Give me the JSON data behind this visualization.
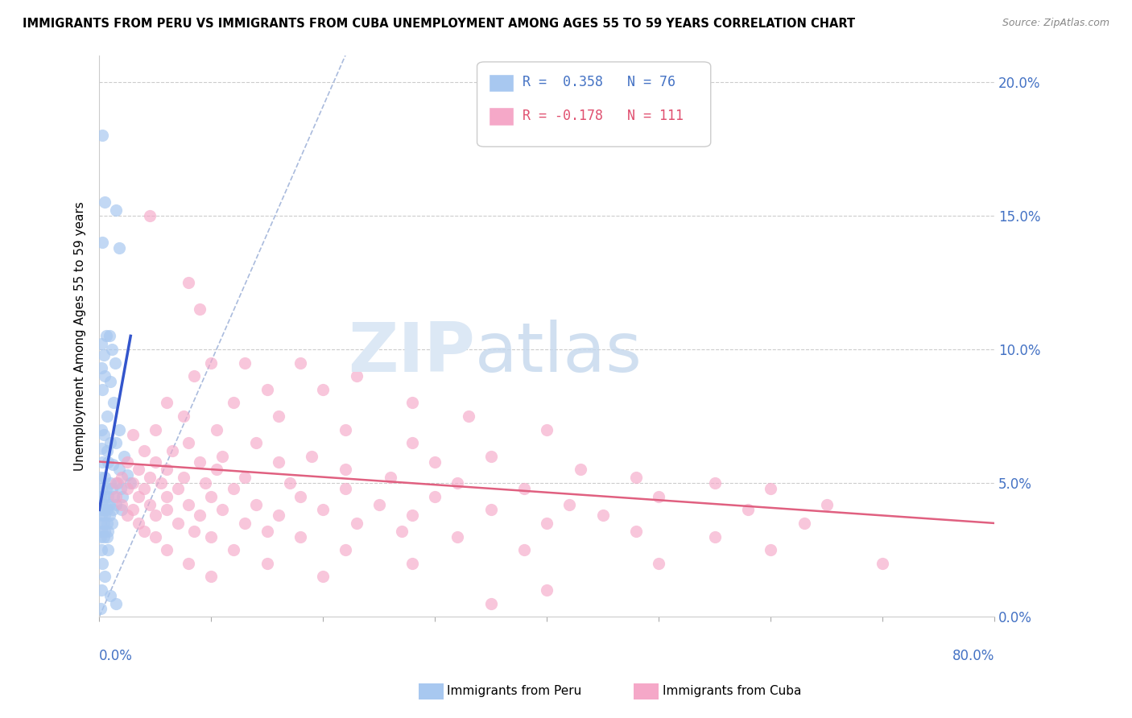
{
  "title": "IMMIGRANTS FROM PERU VS IMMIGRANTS FROM CUBA UNEMPLOYMENT AMONG AGES 55 TO 59 YEARS CORRELATION CHART",
  "source": "Source: ZipAtlas.com",
  "ylabel": "Unemployment Among Ages 55 to 59 years",
  "ytick_vals": [
    0,
    5,
    10,
    15,
    20
  ],
  "xlim": [
    0,
    80
  ],
  "ylim": [
    0,
    21
  ],
  "peru_color": "#a8c8f0",
  "cuba_color": "#f5a8c8",
  "peru_line_color": "#3355cc",
  "cuba_line_color": "#e06080",
  "dashed_line_color": "#aabbdd",
  "peru_scatter": [
    [
      0.3,
      18.0
    ],
    [
      0.5,
      15.5
    ],
    [
      1.5,
      15.2
    ],
    [
      0.3,
      14.0
    ],
    [
      1.8,
      13.8
    ],
    [
      0.6,
      10.5
    ],
    [
      0.9,
      10.5
    ],
    [
      0.2,
      10.2
    ],
    [
      1.1,
      10.0
    ],
    [
      0.4,
      9.8
    ],
    [
      1.4,
      9.5
    ],
    [
      0.2,
      9.3
    ],
    [
      0.5,
      9.0
    ],
    [
      1.0,
      8.8
    ],
    [
      0.3,
      8.5
    ],
    [
      1.3,
      8.0
    ],
    [
      0.7,
      7.5
    ],
    [
      0.2,
      7.0
    ],
    [
      1.8,
      7.0
    ],
    [
      0.4,
      6.8
    ],
    [
      1.0,
      6.5
    ],
    [
      1.5,
      6.5
    ],
    [
      0.2,
      6.3
    ],
    [
      0.7,
      6.2
    ],
    [
      2.2,
      6.0
    ],
    [
      0.3,
      5.8
    ],
    [
      0.8,
      5.8
    ],
    [
      1.2,
      5.7
    ],
    [
      1.8,
      5.5
    ],
    [
      2.5,
      5.3
    ],
    [
      0.1,
      5.2
    ],
    [
      0.5,
      5.2
    ],
    [
      1.0,
      5.0
    ],
    [
      1.6,
      5.0
    ],
    [
      2.8,
      5.0
    ],
    [
      0.2,
      4.8
    ],
    [
      0.6,
      4.8
    ],
    [
      1.1,
      4.8
    ],
    [
      1.9,
      4.8
    ],
    [
      0.1,
      4.5
    ],
    [
      0.4,
      4.5
    ],
    [
      0.8,
      4.5
    ],
    [
      1.3,
      4.5
    ],
    [
      2.1,
      4.5
    ],
    [
      0.2,
      4.2
    ],
    [
      0.5,
      4.2
    ],
    [
      0.9,
      4.2
    ],
    [
      1.5,
      4.2
    ],
    [
      0.1,
      4.0
    ],
    [
      0.4,
      4.0
    ],
    [
      0.7,
      4.0
    ],
    [
      1.2,
      4.0
    ],
    [
      2.0,
      4.0
    ],
    [
      0.2,
      3.8
    ],
    [
      0.5,
      3.8
    ],
    [
      0.9,
      3.8
    ],
    [
      0.1,
      3.5
    ],
    [
      0.4,
      3.5
    ],
    [
      0.7,
      3.5
    ],
    [
      1.1,
      3.5
    ],
    [
      0.2,
      3.2
    ],
    [
      0.5,
      3.2
    ],
    [
      0.8,
      3.2
    ],
    [
      0.1,
      3.0
    ],
    [
      0.4,
      3.0
    ],
    [
      0.7,
      3.0
    ],
    [
      0.2,
      2.5
    ],
    [
      0.8,
      2.5
    ],
    [
      0.3,
      2.0
    ],
    [
      0.5,
      1.5
    ],
    [
      0.2,
      1.0
    ],
    [
      1.0,
      0.8
    ],
    [
      1.5,
      0.5
    ],
    [
      0.1,
      0.3
    ]
  ],
  "cuba_scatter": [
    [
      4.5,
      15.0
    ],
    [
      8.0,
      12.5
    ],
    [
      9.0,
      11.5
    ],
    [
      13.0,
      9.5
    ],
    [
      10.0,
      9.5
    ],
    [
      18.0,
      9.5
    ],
    [
      8.5,
      9.0
    ],
    [
      23.0,
      9.0
    ],
    [
      15.0,
      8.5
    ],
    [
      20.0,
      8.5
    ],
    [
      6.0,
      8.0
    ],
    [
      12.0,
      8.0
    ],
    [
      28.0,
      8.0
    ],
    [
      7.5,
      7.5
    ],
    [
      16.0,
      7.5
    ],
    [
      33.0,
      7.5
    ],
    [
      5.0,
      7.0
    ],
    [
      10.5,
      7.0
    ],
    [
      22.0,
      7.0
    ],
    [
      40.0,
      7.0
    ],
    [
      3.0,
      6.8
    ],
    [
      8.0,
      6.5
    ],
    [
      14.0,
      6.5
    ],
    [
      28.0,
      6.5
    ],
    [
      4.0,
      6.2
    ],
    [
      6.5,
      6.2
    ],
    [
      11.0,
      6.0
    ],
    [
      19.0,
      6.0
    ],
    [
      35.0,
      6.0
    ],
    [
      2.5,
      5.8
    ],
    [
      5.0,
      5.8
    ],
    [
      9.0,
      5.8
    ],
    [
      16.0,
      5.8
    ],
    [
      30.0,
      5.8
    ],
    [
      3.5,
      5.5
    ],
    [
      6.0,
      5.5
    ],
    [
      10.5,
      5.5
    ],
    [
      22.0,
      5.5
    ],
    [
      43.0,
      5.5
    ],
    [
      2.0,
      5.2
    ],
    [
      4.5,
      5.2
    ],
    [
      7.5,
      5.2
    ],
    [
      13.0,
      5.2
    ],
    [
      26.0,
      5.2
    ],
    [
      48.0,
      5.2
    ],
    [
      1.5,
      5.0
    ],
    [
      3.0,
      5.0
    ],
    [
      5.5,
      5.0
    ],
    [
      9.5,
      5.0
    ],
    [
      17.0,
      5.0
    ],
    [
      32.0,
      5.0
    ],
    [
      55.0,
      5.0
    ],
    [
      2.5,
      4.8
    ],
    [
      4.0,
      4.8
    ],
    [
      7.0,
      4.8
    ],
    [
      12.0,
      4.8
    ],
    [
      22.0,
      4.8
    ],
    [
      38.0,
      4.8
    ],
    [
      60.0,
      4.8
    ],
    [
      1.5,
      4.5
    ],
    [
      3.5,
      4.5
    ],
    [
      6.0,
      4.5
    ],
    [
      10.0,
      4.5
    ],
    [
      18.0,
      4.5
    ],
    [
      30.0,
      4.5
    ],
    [
      50.0,
      4.5
    ],
    [
      2.0,
      4.2
    ],
    [
      4.5,
      4.2
    ],
    [
      8.0,
      4.2
    ],
    [
      14.0,
      4.2
    ],
    [
      25.0,
      4.2
    ],
    [
      42.0,
      4.2
    ],
    [
      65.0,
      4.2
    ],
    [
      3.0,
      4.0
    ],
    [
      6.0,
      4.0
    ],
    [
      11.0,
      4.0
    ],
    [
      20.0,
      4.0
    ],
    [
      35.0,
      4.0
    ],
    [
      58.0,
      4.0
    ],
    [
      2.5,
      3.8
    ],
    [
      5.0,
      3.8
    ],
    [
      9.0,
      3.8
    ],
    [
      16.0,
      3.8
    ],
    [
      28.0,
      3.8
    ],
    [
      45.0,
      3.8
    ],
    [
      3.5,
      3.5
    ],
    [
      7.0,
      3.5
    ],
    [
      13.0,
      3.5
    ],
    [
      23.0,
      3.5
    ],
    [
      40.0,
      3.5
    ],
    [
      63.0,
      3.5
    ],
    [
      4.0,
      3.2
    ],
    [
      8.5,
      3.2
    ],
    [
      15.0,
      3.2
    ],
    [
      27.0,
      3.2
    ],
    [
      48.0,
      3.2
    ],
    [
      5.0,
      3.0
    ],
    [
      10.0,
      3.0
    ],
    [
      18.0,
      3.0
    ],
    [
      32.0,
      3.0
    ],
    [
      55.0,
      3.0
    ],
    [
      6.0,
      2.5
    ],
    [
      12.0,
      2.5
    ],
    [
      22.0,
      2.5
    ],
    [
      38.0,
      2.5
    ],
    [
      60.0,
      2.5
    ],
    [
      8.0,
      2.0
    ],
    [
      15.0,
      2.0
    ],
    [
      28.0,
      2.0
    ],
    [
      50.0,
      2.0
    ],
    [
      70.0,
      2.0
    ],
    [
      10.0,
      1.5
    ],
    [
      20.0,
      1.5
    ],
    [
      40.0,
      1.0
    ],
    [
      35.0,
      0.5
    ]
  ]
}
